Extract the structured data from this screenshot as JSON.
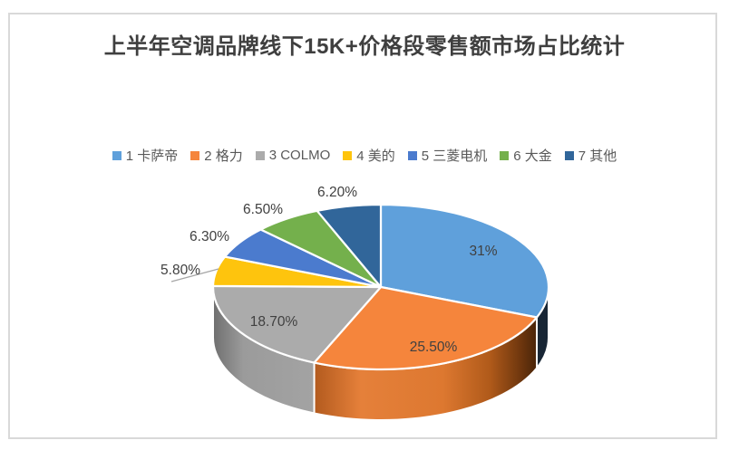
{
  "page": {
    "background": "#FFFFFF",
    "border_color": "#D9D9D9"
  },
  "title": {
    "text": "上半年空调品牌线下15K+价格段零售额市场占比统计",
    "color": "#3F3F3F"
  },
  "legend": {
    "position": "top",
    "text_color": "#595959",
    "items": [
      {
        "label": "1 卡萨帝",
        "color": "#5FA0DB"
      },
      {
        "label": "2 格力",
        "color": "#F5853C"
      },
      {
        "label": "3 COLMO",
        "color": "#ABABAB"
      },
      {
        "label": "4 美的",
        "color": "#FEC40D"
      },
      {
        "label": "5 三菱电机",
        "color": "#4B7BCE"
      },
      {
        "label": "6 大金",
        "color": "#74B04C"
      },
      {
        "label": "7 其他",
        "color": "#31669A"
      }
    ]
  },
  "chart_data": {
    "type": "pie",
    "style": "3d",
    "title": "上半年空调品牌线下15K+价格段零售额市场占比统计",
    "categories": [
      "卡萨帝",
      "格力",
      "COLMO",
      "美的",
      "三菱电机",
      "大金",
      "其他"
    ],
    "values": [
      31,
      25.5,
      18.7,
      5.8,
      6.3,
      6.5,
      6.2
    ],
    "unit": "%",
    "data_labels": [
      "31%",
      "25.50%",
      "18.70%",
      "5.80%",
      "6.30%",
      "6.50%",
      "6.20%"
    ],
    "colors": [
      "#5FA0DB",
      "#F5853C",
      "#ABABAB",
      "#FEC40D",
      "#4B7BCE",
      "#74B04C",
      "#31669A"
    ],
    "start_angle_deg": 0,
    "direction": "clockwise",
    "legend_position": "top",
    "label_color": "#404040",
    "slice_border_color": "#FFFFFF",
    "leader_line_color": "#A6A6A6"
  }
}
